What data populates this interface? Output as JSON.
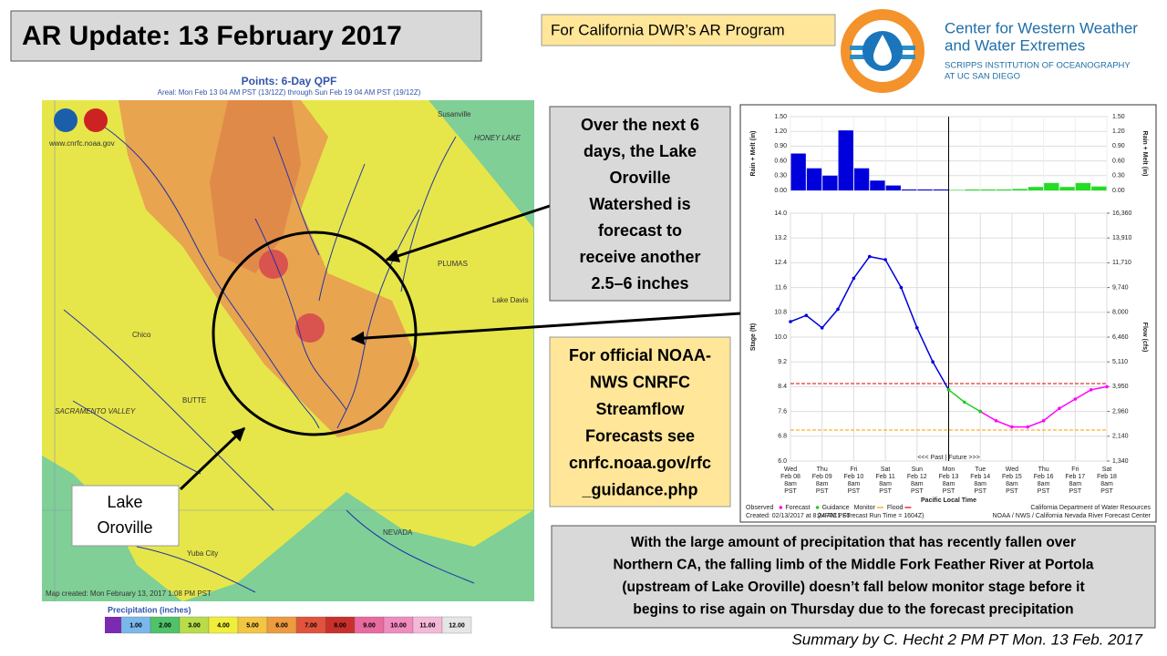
{
  "slide": {
    "title": "AR Update: 13 February 2017",
    "program_tag": "For California DWR’s AR Program",
    "logo_name": [
      "Center for Western Weather",
      "and Water Extremes"
    ],
    "logo_institution": [
      "SCRIPPS INSTITUTION OF OCEANOGRAPHY",
      "AT UC SAN DIEGO"
    ],
    "callout_forecast": [
      "Over the next 6",
      "days, the Lake",
      "Oroville",
      "Watershed is",
      "forecast to",
      "receive another",
      "2.5–6 inches"
    ],
    "callout_official": [
      "For official NOAA-",
      "NWS CNRFC",
      "Streamflow",
      "Forecasts see",
      "cnrfc.noaa.gov/rfc",
      "_guidance.php"
    ],
    "summary": [
      "With the large amount of precipitation  that has recently fallen over",
      "Northern CA, the falling limb of the Middle Fork Feather River at Portola",
      "(upstream of Lake Oroville) doesn’t fall below monitor stage before it",
      "begins to rise again on Thursday due to the forecast precipitation"
    ],
    "credit": "Summary by C. Hecht 2 PM PT Mon. 13 Feb. 2017"
  },
  "map": {
    "title": "Points: 6-Day QPF",
    "subtitle": "Areal: Mon Feb 13 04 AM PST (13/12Z) through Sun Feb 19 04 AM PST (19/12Z)",
    "website": "www.cnrfc.noaa.gov",
    "created": "Map created: Mon February 13, 2017 1:08 PM PST",
    "places": [
      "Susanville",
      "HONEY LAKE",
      "PLUMAS",
      "Lake Davis",
      "Chico",
      "BUTTE",
      "SACRAMENTO VALLEY",
      "NEVADA",
      "Yuba City"
    ],
    "lake_label": [
      "Lake",
      "Oroville"
    ],
    "legend_title": "Precipitation (inches)",
    "legend_labels": [
      "1.00",
      "2.00",
      "3.00",
      "4.00",
      "5.00",
      "6.00",
      "7.00",
      "8.00",
      "9.00",
      "10.00",
      "11.00",
      "12.00"
    ]
  },
  "chart_data": {
    "type": "line",
    "x_label": "Pacific Local Time",
    "y_label": "Stage (ft)",
    "y2_label": "Flow (cfs)",
    "rain_label": "Rain + Melt (in)",
    "past_future": "<<< Past | Future >>>",
    "now": "2017-02-13T08:00",
    "xlim": [
      "2017-02-08T08:00",
      "2017-02-18T08:00"
    ],
    "xticks": [
      {
        "value": "2017-02-08T08:00",
        "label": [
          "Wed",
          "Feb 08",
          "8am",
          "PST"
        ]
      },
      {
        "value": "2017-02-09T08:00",
        "label": [
          "Thu",
          "Feb 09",
          "8am",
          "PST"
        ]
      },
      {
        "value": "2017-02-10T08:00",
        "label": [
          "Fri",
          "Feb 10",
          "8am",
          "PST"
        ]
      },
      {
        "value": "2017-02-11T08:00",
        "label": [
          "Sat",
          "Feb 11",
          "8am",
          "PST"
        ]
      },
      {
        "value": "2017-02-12T08:00",
        "label": [
          "Sun",
          "Feb 12",
          "8am",
          "PST"
        ]
      },
      {
        "value": "2017-02-13T08:00",
        "label": [
          "Mon",
          "Feb 13",
          "8am",
          "PST"
        ]
      },
      {
        "value": "2017-02-14T08:00",
        "label": [
          "Tue",
          "Feb 14",
          "8am",
          "PST"
        ]
      },
      {
        "value": "2017-02-15T08:00",
        "label": [
          "Wed",
          "Feb 15",
          "8am",
          "PST"
        ]
      },
      {
        "value": "2017-02-16T08:00",
        "label": [
          "Thu",
          "Feb 16",
          "8am",
          "PST"
        ]
      },
      {
        "value": "2017-02-17T08:00",
        "label": [
          "Fri",
          "Feb 17",
          "8am",
          "PST"
        ]
      },
      {
        "value": "2017-02-18T08:00",
        "label": [
          "Sat",
          "Feb 18",
          "8am",
          "PST"
        ]
      }
    ],
    "ylim": [
      6,
      14
    ],
    "yticks": [
      {
        "value": 6,
        "label": "6.0"
      },
      6.8,
      7.6,
      8.4,
      9.2,
      {
        "value": 10,
        "label": "10.0"
      },
      10.8,
      11.6,
      12.4,
      13.2,
      {
        "value": 14,
        "label": "14.0"
      }
    ],
    "y2ticks": [
      {
        "value": 1340,
        "label": "1,340"
      },
      {
        "value": 2140,
        "label": "2,140"
      },
      {
        "value": 2960,
        "label": "2,960"
      },
      {
        "value": 3950,
        "label": "3,950"
      },
      {
        "value": 5110,
        "label": "5,110"
      },
      {
        "value": 6460,
        "label": "6,460"
      },
      {
        "value": 8000,
        "label": "8,000"
      },
      {
        "value": 9740,
        "label": "9,740"
      },
      {
        "value": 11710,
        "label": "11,710"
      },
      {
        "value": 13910,
        "label": "13,910"
      },
      {
        "value": 16360,
        "label": "16,360"
      }
    ],
    "rain_ylim": [
      0,
      1.5
    ],
    "rain_yticks": [
      {
        "value": 0,
        "label": "0.00"
      },
      {
        "value": 0.3,
        "label": "0.30"
      },
      {
        "value": 0.6,
        "label": "0.60"
      },
      {
        "value": 0.9,
        "label": "0.90"
      },
      {
        "value": 1.2,
        "label": "1.20"
      },
      {
        "value": 1.5,
        "label": "1.50"
      }
    ],
    "rain": [
      {
        "color": "#0000dd",
        "x": [
          "2017-02-08T08:00",
          "2017-02-08T20:00",
          "2017-02-09T08:00",
          "2017-02-09T20:00",
          "2017-02-10T08:00",
          "2017-02-10T20:00",
          "2017-02-11T08:00",
          "2017-02-11T20:00",
          "2017-02-12T08:00",
          "2017-02-12T20:00"
        ],
        "values": [
          0.75,
          0.45,
          0.3,
          1.22,
          0.45,
          0.2,
          0.1,
          0.02,
          0.02,
          0.02
        ]
      },
      {
        "color": "#22dd22",
        "x": [
          "2017-02-13T08:00",
          "2017-02-13T20:00",
          "2017-02-14T08:00",
          "2017-02-14T20:00",
          "2017-02-15T08:00",
          "2017-02-15T20:00",
          "2017-02-16T08:00",
          "2017-02-16T20:00",
          "2017-02-17T08:00",
          "2017-02-17T20:00"
        ],
        "values": [
          0.01,
          0.02,
          0.02,
          0.02,
          0.03,
          0.07,
          0.15,
          0.07,
          0.15,
          0.08
        ]
      }
    ],
    "series": [
      {
        "name": "Observed",
        "color": "#0000dd",
        "x": [
          "2017-02-08T08:00",
          "2017-02-08T20:00",
          "2017-02-09T08:00",
          "2017-02-09T20:00",
          "2017-02-10T08:00",
          "2017-02-10T20:00",
          "2017-02-11T08:00",
          "2017-02-11T20:00",
          "2017-02-12T08:00",
          "2017-02-12T20:00",
          "2017-02-13T08:00"
        ],
        "values": [
          10.5,
          10.7,
          10.3,
          10.9,
          11.9,
          12.6,
          12.5,
          11.6,
          10.3,
          9.2,
          8.3
        ]
      },
      {
        "name": "Forecast",
        "color": "#ff00ff",
        "x": [
          "2017-02-14T08:00",
          "2017-02-14T20:00",
          "2017-02-15T08:00",
          "2017-02-15T20:00",
          "2017-02-16T08:00",
          "2017-02-16T20:00",
          "2017-02-17T08:00",
          "2017-02-17T20:00",
          "2017-02-18T08:00"
        ],
        "values": [
          7.6,
          7.3,
          7.1,
          7.1,
          7.3,
          7.7,
          8.0,
          8.3,
          8.4
        ]
      },
      {
        "name": "Guidance",
        "color": "#22cc22",
        "x": [
          "2017-02-13T08:00",
          "2017-02-13T20:00",
          "2017-02-14T08:00"
        ],
        "values": [
          8.3,
          7.9,
          7.6
        ]
      }
    ],
    "thresholds": [
      {
        "name": "Monitor",
        "color": "#ff9900",
        "value": 7.0
      },
      {
        "name": "Flood",
        "color": "#dd0000",
        "value": 8.5
      }
    ],
    "credits": [
      "California Department of Water Resources",
      "Created: 02/13/2017 at 8:24 AM PST",
      "(MFTC1 Forecast Run Time = 1604Z)",
      "NOAA / NWS / California Nevada River Forecast Center"
    ]
  }
}
